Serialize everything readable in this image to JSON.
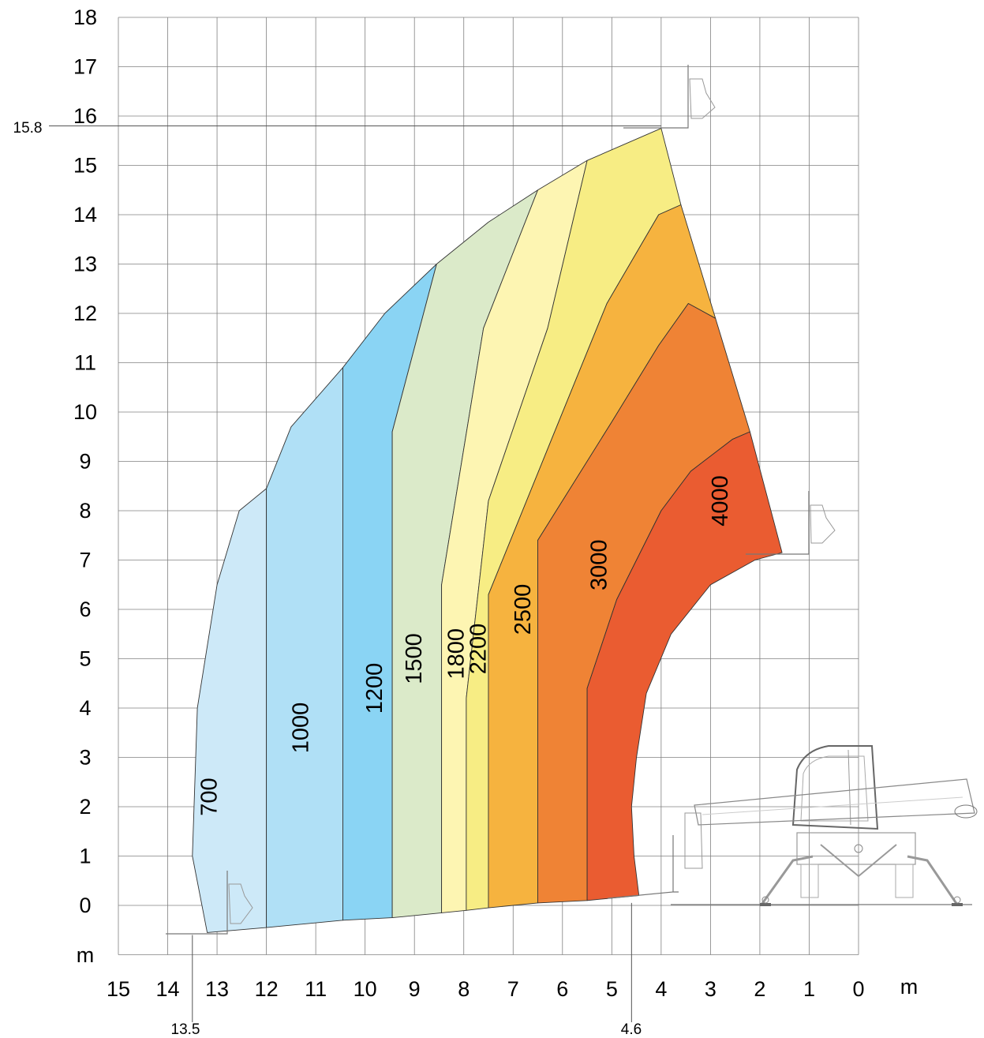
{
  "chart_data": {
    "type": "area",
    "title": "",
    "xlabel": "m",
    "ylabel": "m",
    "xlim": [
      15,
      0
    ],
    "ylim": [
      0,
      18
    ],
    "x_ticks": [
      "15",
      "14",
      "13",
      "12",
      "11",
      "10",
      "9",
      "8",
      "7",
      "6",
      "5",
      "4",
      "3",
      "2",
      "1",
      "0"
    ],
    "y_ticks": [
      "0",
      "1",
      "2",
      "3",
      "4",
      "5",
      "6",
      "7",
      "8",
      "9",
      "10",
      "11",
      "12",
      "13",
      "14",
      "15",
      "16",
      "17",
      "18"
    ],
    "grid": true,
    "markers": {
      "max_height": {
        "label": "15.8",
        "value": 15.8
      },
      "max_reach": {
        "label": "13.5",
        "value": 13.5
      },
      "reach_at_ground": {
        "label": "4.6",
        "value": 4.6
      }
    },
    "zones": [
      {
        "name": "700",
        "color": "#cde9f8",
        "polygon": [
          [
            13.2,
            -0.55
          ],
          [
            13.5,
            1.0
          ],
          [
            13.4,
            4.0
          ],
          [
            13.0,
            6.5
          ],
          [
            12.55,
            8.0
          ],
          [
            12.0,
            8.45
          ],
          [
            12.0,
            -0.45
          ]
        ]
      },
      {
        "name": "1000",
        "color": "#b0e0f6",
        "polygon": [
          [
            12.0,
            -0.45
          ],
          [
            12.0,
            8.45
          ],
          [
            11.5,
            9.7
          ],
          [
            10.45,
            10.9
          ],
          [
            10.45,
            -0.3
          ]
        ]
      },
      {
        "name": "1200",
        "color": "#8ad4f4",
        "polygon": [
          [
            10.45,
            -0.3
          ],
          [
            10.45,
            10.9
          ],
          [
            9.6,
            12.0
          ],
          [
            8.55,
            13.0
          ],
          [
            9.45,
            9.6
          ],
          [
            9.45,
            -0.25
          ]
        ]
      },
      {
        "name": "1500",
        "color": "#dbeac9",
        "polygon": [
          [
            9.45,
            -0.25
          ],
          [
            9.45,
            9.6
          ],
          [
            8.55,
            13.0
          ],
          [
            7.5,
            13.85
          ],
          [
            6.5,
            14.5
          ],
          [
            7.6,
            11.7
          ],
          [
            8.45,
            6.5
          ],
          [
            8.45,
            -0.15
          ]
        ]
      },
      {
        "name": "1800",
        "color": "#fdf5b2",
        "polygon": [
          [
            8.45,
            -0.15
          ],
          [
            8.45,
            6.5
          ],
          [
            7.6,
            11.7
          ],
          [
            6.5,
            14.5
          ],
          [
            5.5,
            15.1
          ],
          [
            6.3,
            11.7
          ],
          [
            7.5,
            8.2
          ],
          [
            7.95,
            4.2
          ],
          [
            7.95,
            -0.1
          ]
        ]
      },
      {
        "name": "2200",
        "color": "#f7ed84",
        "polygon": [
          [
            7.95,
            -0.1
          ],
          [
            7.95,
            4.2
          ],
          [
            7.5,
            8.2
          ],
          [
            6.3,
            11.7
          ],
          [
            5.5,
            15.1
          ],
          [
            4.0,
            15.75
          ],
          [
            3.6,
            14.2
          ],
          [
            4.05,
            14.0
          ],
          [
            5.1,
            12.2
          ],
          [
            6.2,
            9.5
          ],
          [
            7.5,
            6.3
          ],
          [
            7.5,
            -0.05
          ]
        ]
      },
      {
        "name": "2500",
        "color": "#f6b33f",
        "polygon": [
          [
            7.5,
            -0.05
          ],
          [
            7.5,
            6.3
          ],
          [
            6.2,
            9.5
          ],
          [
            5.1,
            12.2
          ],
          [
            4.05,
            14.0
          ],
          [
            3.6,
            14.2
          ],
          [
            2.9,
            11.9
          ],
          [
            3.45,
            12.2
          ],
          [
            4.05,
            11.35
          ],
          [
            5.0,
            9.8
          ],
          [
            6.5,
            7.4
          ],
          [
            6.5,
            0.05
          ]
        ]
      },
      {
        "name": "3000",
        "color": "#ef8335",
        "polygon": [
          [
            6.5,
            0.05
          ],
          [
            6.5,
            7.4
          ],
          [
            5.0,
            9.8
          ],
          [
            4.05,
            11.35
          ],
          [
            3.45,
            12.2
          ],
          [
            2.9,
            11.9
          ],
          [
            2.2,
            9.6
          ],
          [
            2.55,
            9.45
          ],
          [
            3.4,
            8.8
          ],
          [
            4.0,
            8.0
          ],
          [
            4.9,
            6.2
          ],
          [
            5.5,
            4.4
          ],
          [
            5.5,
            0.1
          ]
        ]
      },
      {
        "name": "4000",
        "color": "#ea5c31",
        "polygon": [
          [
            5.5,
            0.1
          ],
          [
            5.5,
            4.4
          ],
          [
            4.9,
            6.2
          ],
          [
            4.0,
            8.0
          ],
          [
            3.4,
            8.8
          ],
          [
            2.55,
            9.45
          ],
          [
            2.2,
            9.6
          ],
          [
            1.55,
            7.15
          ],
          [
            2.1,
            7.0
          ],
          [
            3.0,
            6.5
          ],
          [
            3.8,
            5.5
          ],
          [
            4.3,
            4.3
          ],
          [
            4.5,
            3.0
          ],
          [
            4.6,
            2.0
          ],
          [
            4.55,
            1.0
          ],
          [
            4.45,
            0.2
          ]
        ]
      }
    ],
    "labels": [
      {
        "text": "700",
        "x": 13.15,
        "y": 2.2
      },
      {
        "text": "1000",
        "x": 11.3,
        "y": 3.6
      },
      {
        "text": "1200",
        "x": 9.8,
        "y": 4.4
      },
      {
        "text": "1500",
        "x": 9.0,
        "y": 5.0
      },
      {
        "text": "1800",
        "x": 8.15,
        "y": 5.1
      },
      {
        "text": "2200",
        "x": 7.7,
        "y": 5.2
      },
      {
        "text": "2500",
        "x": 6.8,
        "y": 6.0
      },
      {
        "text": "3000",
        "x": 5.25,
        "y": 6.9
      },
      {
        "text": "4000",
        "x": 2.8,
        "y": 8.2
      }
    ]
  }
}
